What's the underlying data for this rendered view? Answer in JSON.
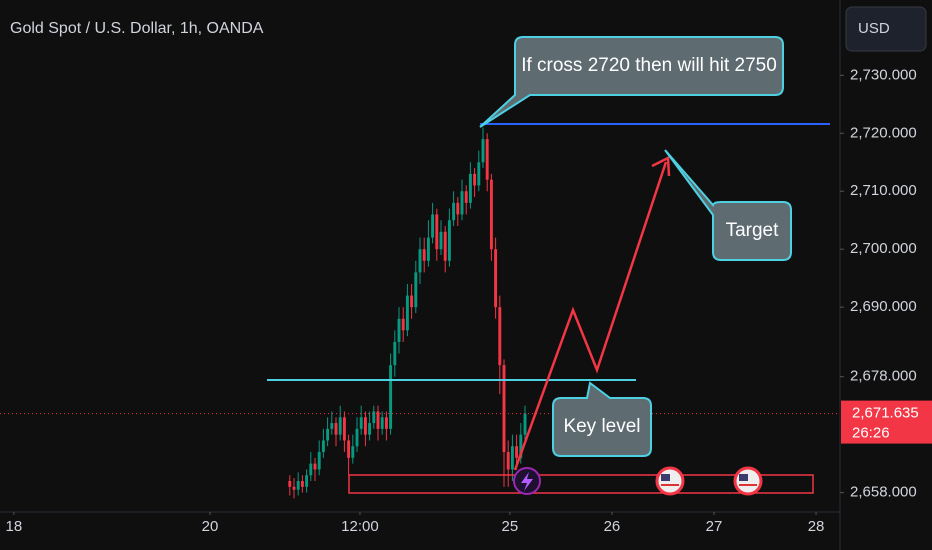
{
  "header": {
    "title": "Gold Spot / U.S. Dollar, 1h, OANDA",
    "currency": "USD"
  },
  "chart_data": {
    "type": "candlestick",
    "x": [
      69,
      70,
      71,
      72,
      73,
      74,
      75,
      76,
      77,
      78,
      79,
      80,
      81,
      82,
      83,
      84,
      85,
      86,
      87,
      88,
      89,
      90,
      91,
      92,
      93,
      94,
      95,
      96,
      97,
      98,
      99,
      100,
      101,
      102,
      103,
      104,
      105,
      106,
      107,
      108,
      109,
      110,
      111,
      112,
      113,
      114,
      115,
      116,
      117,
      118,
      119,
      120,
      121,
      122,
      123,
      124,
      125
    ],
    "open": [
      2660,
      2659,
      2658.5,
      2660,
      2659,
      2661,
      2663,
      2662,
      2665,
      2667,
      2669,
      2670,
      2668,
      2671,
      2667,
      2664,
      2666,
      2669,
      2671,
      2668,
      2670,
      2672,
      2669,
      2671,
      2669,
      2680,
      2684,
      2688,
      2686,
      2692,
      2690,
      2696,
      2700,
      2698,
      2702,
      2706,
      2700,
      2703,
      2698,
      2705,
      2708,
      2706,
      2710,
      2708,
      2713,
      2711,
      2715,
      2719,
      2712,
      2700,
      2690,
      2680,
      2665,
      2662,
      2666,
      2664,
      2668
    ],
    "high": [
      2661,
      2660.5,
      2661.5,
      2661,
      2662,
      2665,
      2664,
      2667,
      2669,
      2671,
      2672,
      2671,
      2673,
      2672,
      2668,
      2668,
      2671,
      2673,
      2672,
      2672,
      2673,
      2673,
      2672,
      2672,
      2682,
      2686,
      2690,
      2690,
      2694,
      2694,
      2698,
      2702,
      2702,
      2705,
      2708,
      2707,
      2705,
      2704,
      2707,
      2710,
      2709,
      2712,
      2711,
      2715,
      2714,
      2717,
      2721,
      2720,
      2713,
      2702,
      2692,
      2681,
      2667,
      2668,
      2668,
      2670,
      2673
    ],
    "low": [
      2657.5,
      2657,
      2657.5,
      2658,
      2658,
      2660,
      2660,
      2661,
      2664,
      2666,
      2668,
      2666,
      2667,
      2665,
      2661,
      2663,
      2665,
      2668,
      2666,
      2667,
      2669,
      2667,
      2668,
      2667,
      2668,
      2678,
      2682,
      2684,
      2685,
      2688,
      2689,
      2694,
      2696,
      2697,
      2701,
      2698,
      2699,
      2696,
      2697,
      2704,
      2704,
      2705,
      2706,
      2707,
      2709,
      2710,
      2714,
      2710,
      2698,
      2688,
      2675,
      2659,
      2659,
      2660,
      2662,
      2663,
      2667
    ],
    "close": [
      2659,
      2658.5,
      2660,
      2659,
      2661,
      2663,
      2662,
      2665,
      2667,
      2669,
      2670,
      2668,
      2671,
      2667,
      2664,
      2666,
      2669,
      2671,
      2668,
      2670,
      2672,
      2669,
      2671,
      2669,
      2680,
      2684,
      2688,
      2686,
      2692,
      2690,
      2696,
      2700,
      2698,
      2702,
      2706,
      2700,
      2703,
      2698,
      2705,
      2708,
      2706,
      2710,
      2708,
      2713,
      2711,
      2715,
      2719,
      2712,
      2700,
      2690,
      2680,
      2665,
      2662,
      2666,
      2664,
      2668,
      2671.635
    ],
    "up_color": "#089981",
    "down_color": "#f23645",
    "xlim": [
      0,
      200
    ],
    "xticks": [
      {
        "value": 3.3,
        "label": "18"
      },
      {
        "value": 50,
        "label": "20"
      },
      {
        "value": 85.7,
        "label": "12:00"
      },
      {
        "value": 121.4,
        "label": "25"
      },
      {
        "value": 145.7,
        "label": "26"
      },
      {
        "value": 170,
        "label": "27"
      },
      {
        "value": 194.3,
        "label": "28"
      }
    ],
    "ylim": [
      2655,
      2743
    ],
    "yticks": [
      {
        "value": 2658,
        "label": "2,658.000"
      },
      {
        "value": 2678,
        "label": "2,678.000"
      },
      {
        "value": 2690,
        "label": "2,690.000"
      },
      {
        "value": 2700,
        "label": "2,700.000"
      },
      {
        "value": 2710,
        "label": "2,710.000"
      },
      {
        "value": 2720,
        "label": "2,720.000"
      },
      {
        "value": 2730,
        "label": "2,730.000"
      }
    ],
    "last_price": {
      "value": 2671.635,
      "label": "2,671.635"
    },
    "countdown": "26:26",
    "annotations": [
      "If cross 2720 then will hit 2750",
      "Target",
      "Key level"
    ]
  }
}
